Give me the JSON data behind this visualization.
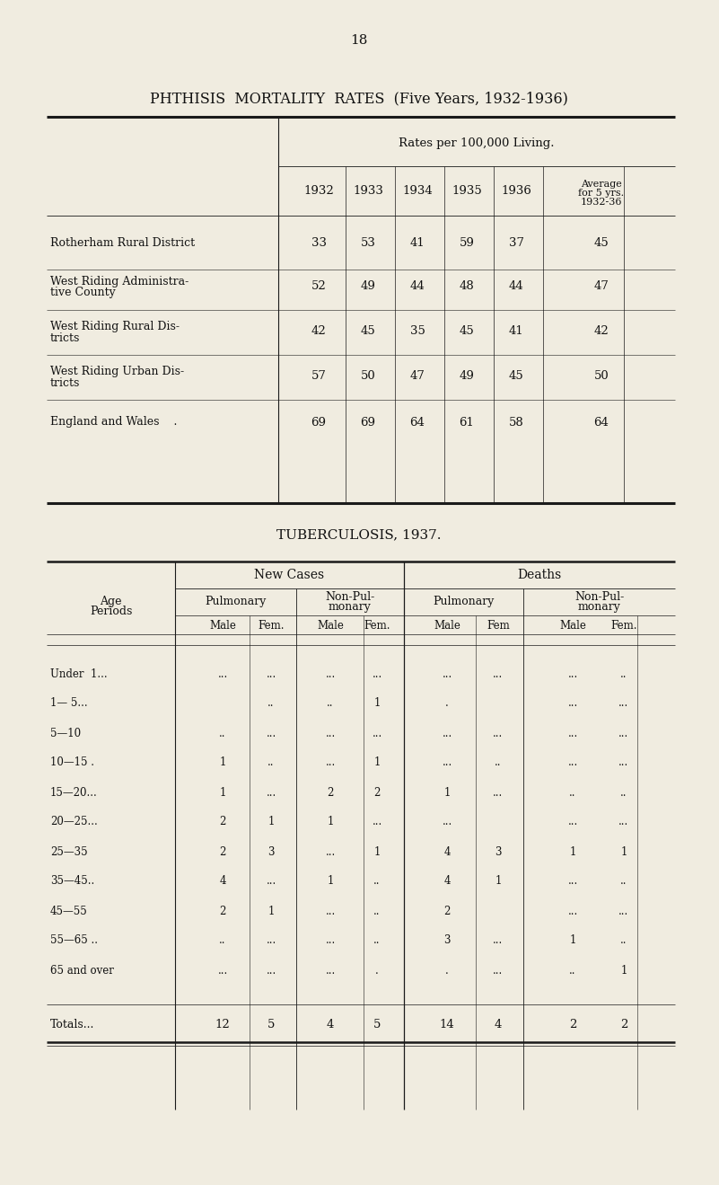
{
  "bg_color": "#f0ece0",
  "page_number": "18",
  "title1": "PHTHISIS  MORTALITY  RATES  (Five Years, 1932-1936)",
  "table1_subheader": "Rates per 100,000 Living.",
  "table1_col_headers": [
    "1932",
    "1933",
    "1934",
    "1935",
    "1936",
    "Average\nfor 5 yrs.\n1932-36"
  ],
  "table1_rows": [
    [
      "Rotherham Rural District",
      "33",
      "53",
      "41",
      "59",
      "37",
      "45"
    ],
    [
      "West Riding Administra-\ntive County",
      "52",
      "49",
      "44",
      "48",
      "44",
      "47"
    ],
    [
      "West Riding Rural Dis-\ntricts",
      "42",
      "45",
      "35",
      "45",
      "41",
      "42"
    ],
    [
      "West Riding Urban Dis-\ntricts",
      "57",
      "50",
      "47",
      "49",
      "45",
      "50"
    ],
    [
      "England and Wales    .",
      "69",
      "69",
      "64",
      "61",
      "58",
      "64"
    ]
  ],
  "title2": "TUBERCULOSIS, 1937.",
  "table2_group_headers": [
    "New Cases",
    "Deaths"
  ],
  "table2_subgroup_headers": [
    "Pulmonary",
    "Non-Pul-\nmonary",
    "Pulmonary",
    "Non-Pul-\nmonary"
  ],
  "table2_col_headers": [
    "Male",
    "Fem.",
    "Male",
    "Fem.",
    "Male",
    "Fem",
    "Male",
    "Fem."
  ],
  "table2_age_label": "Age\nPeriods",
  "table2_rows": [
    [
      "Under  1...",
      "...",
      "...",
      "...",
      "...",
      "...",
      "...",
      "...",
      ".."
    ],
    [
      "1— 5...",
      "",
      "..",
      "..",
      "1",
      ".",
      "",
      "...",
      "..."
    ],
    [
      "5—10",
      "..",
      "...",
      "...",
      "...",
      "...",
      "...",
      "...",
      "..."
    ],
    [
      "10—15 .",
      "1",
      "..",
      "...",
      "1",
      "...",
      "..",
      "...",
      "..."
    ],
    [
      "15—20...",
      "1",
      "...",
      "2",
      "2",
      "1",
      "...",
      "..",
      ".."
    ],
    [
      "20—25...",
      "2",
      "1",
      "1",
      "...",
      "...",
      "",
      "...",
      "..."
    ],
    [
      "25—35",
      "2",
      "3",
      "...",
      "1",
      "4",
      "3",
      "1",
      "1"
    ],
    [
      "35—45..",
      "4",
      "...",
      "1",
      "..",
      "4",
      "1",
      "...",
      ".."
    ],
    [
      "45—55",
      "2",
      "1",
      "...",
      "..",
      "2",
      "",
      "...",
      "..."
    ],
    [
      "55—65 ..",
      "..",
      "...",
      "...",
      "..",
      "3",
      "...",
      "1",
      ".."
    ],
    [
      "65 and over",
      "...",
      "...",
      "...",
      ".",
      ".",
      "...",
      "..",
      "1"
    ],
    [
      "Totals...",
      "12",
      "5",
      "4",
      "5",
      "14",
      "4",
      "2",
      "2"
    ]
  ]
}
